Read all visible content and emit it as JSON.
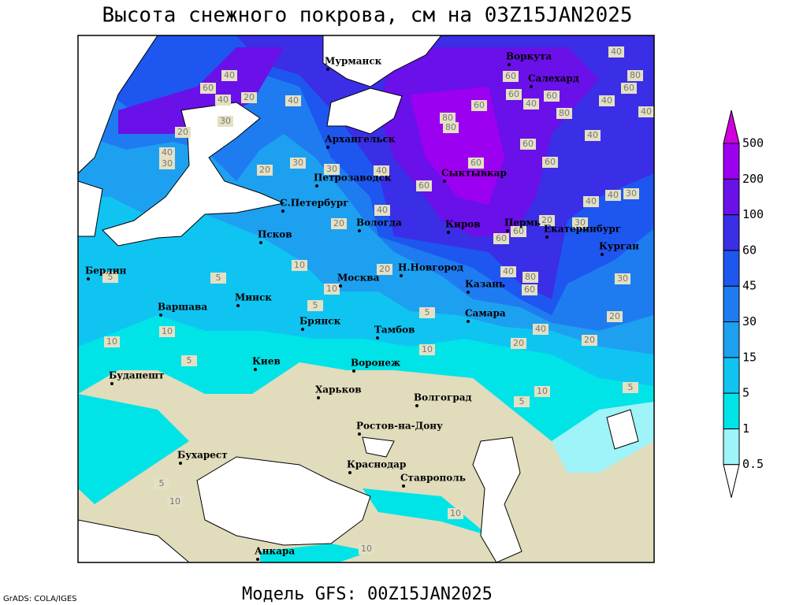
{
  "title": "Высота снежного покрова, см на 03Z15JAN2025",
  "footer": "Модель GFS: 00Z15JAN2025",
  "credit": "GrADS: COLA/IGES",
  "legend": {
    "levels": [
      0.5,
      1,
      5,
      15,
      30,
      45,
      60,
      100,
      200,
      500
    ],
    "colors": [
      "#ffffff",
      "#9ef4f8",
      "#00e4e8",
      "#10c4f2",
      "#1ea0f0",
      "#1e7cf0",
      "#1e56f0",
      "#3a2ee6",
      "#6a10e8",
      "#9c00f0",
      "#d000e0"
    ]
  },
  "cities": [
    "Мурманск",
    "Воркута",
    "Салехард",
    "Архангельск",
    "Сыктывкар",
    "Петрозаводск",
    "С.Петербург",
    "Вологда",
    "Псков",
    "Киров",
    "Пермь",
    "Екатеринбург",
    "Курган",
    "Берлин",
    "Н.Новгород",
    "Москва",
    "Казань",
    "Минск",
    "Варшава",
    "Самара",
    "Брянск",
    "Тамбов",
    "Киев",
    "Воронеж",
    "Будапешт",
    "Харьков",
    "Волгоград",
    "Ростов-на-Дону",
    "Бухарест",
    "Краснодар",
    "Ставрополь",
    "Анкара"
  ],
  "contour_labels": [
    40,
    60,
    40,
    20,
    40,
    60,
    40,
    80,
    60,
    60,
    40,
    60,
    80,
    40,
    40,
    80,
    80,
    60,
    60,
    40,
    60,
    40,
    60,
    40,
    40,
    30,
    60,
    20,
    30,
    20,
    30,
    40,
    30,
    20,
    30,
    30,
    20,
    40,
    60,
    60,
    40,
    80,
    60,
    30,
    20,
    40,
    20,
    20,
    10,
    20,
    10,
    5,
    5,
    10,
    10,
    10,
    5,
    5,
    5,
    10,
    5,
    5,
    5,
    10,
    10,
    10
  ]
}
